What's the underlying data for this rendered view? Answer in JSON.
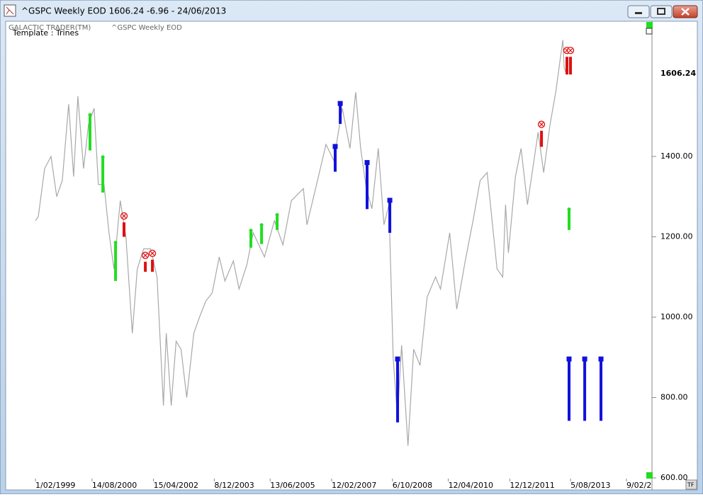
{
  "window": {
    "title": "^GSPC Weekly EOD  1606.24  -6.96 - 24/06/2013"
  },
  "header": {
    "app": "GALACTIC TRADER(TM)",
    "template": "Template : Trines"
  },
  "chart_data": {
    "type": "line",
    "subtitle": "^GSPC Weekly EOD",
    "x": [
      "1999-02-01",
      "1999-03-01",
      "1999-05-03",
      "1999-07-05",
      "1999-08-30",
      "1999-10-25",
      "1999-12-27",
      "2000-02-14",
      "2000-03-27",
      "2000-05-22",
      "2000-07-10",
      "2000-09-04",
      "2000-10-16",
      "2000-12-11",
      "2001-01-29",
      "2001-03-19",
      "2001-05-21",
      "2001-07-16",
      "2001-09-17",
      "2001-11-05",
      "2002-01-07",
      "2002-03-18",
      "2002-05-20",
      "2002-07-22",
      "2002-08-19",
      "2002-10-07",
      "2002-11-25",
      "2003-01-13",
      "2003-03-10",
      "2003-05-19",
      "2003-07-14",
      "2003-09-15",
      "2003-11-17",
      "2004-01-26",
      "2004-03-22",
      "2004-06-14",
      "2004-08-09",
      "2004-10-25",
      "2004-12-27",
      "2005-04-18",
      "2005-07-25",
      "2005-10-17",
      "2006-01-09",
      "2006-05-08",
      "2006-06-12",
      "2006-09-25",
      "2006-12-18",
      "2007-03-05",
      "2007-05-28",
      "2007-08-13",
      "2007-10-08",
      "2007-11-26",
      "2008-01-21",
      "2008-03-17",
      "2008-05-19",
      "2008-07-14",
      "2008-09-01",
      "2008-10-13",
      "2008-11-24",
      "2009-01-05",
      "2009-03-09",
      "2009-05-04",
      "2009-07-06",
      "2009-09-14",
      "2009-12-07",
      "2010-01-25",
      "2010-04-26",
      "2010-07-05",
      "2010-09-27",
      "2010-12-13",
      "2011-02-21",
      "2011-05-02",
      "2011-08-08",
      "2011-10-03",
      "2011-10-31",
      "2011-11-28",
      "2012-02-06",
      "2012-04-02",
      "2012-06-04",
      "2012-09-17",
      "2012-11-12",
      "2013-01-14",
      "2013-03-11",
      "2013-05-20",
      "2013-06-03",
      "2013-06-24"
    ],
    "series": [
      {
        "color": "#a8a8a8",
        "values": [
          1240,
          1250,
          1370,
          1400,
          1300,
          1340,
          1530,
          1350,
          1550,
          1370,
          1480,
          1520,
          1330,
          1330,
          1210,
          1120,
          1290,
          1200,
          960,
          1120,
          1170,
          1170,
          1100,
          780,
          960,
          780,
          940,
          920,
          800,
          960,
          1000,
          1040,
          1060,
          1150,
          1090,
          1140,
          1070,
          1130,
          1210,
          1150,
          1240,
          1180,
          1290,
          1320,
          1230,
          1340,
          1430,
          1390,
          1520,
          1420,
          1560,
          1420,
          1320,
          1270,
          1420,
          1230,
          1280,
          900,
          750,
          930,
          680,
          920,
          880,
          1050,
          1100,
          1070,
          1210,
          1020,
          1140,
          1240,
          1340,
          1360,
          1120,
          1100,
          1280,
          1160,
          1350,
          1420,
          1280,
          1460,
          1360,
          1480,
          1560,
          1690,
          1620,
          1606.24
        ]
      }
    ],
    "last_value": 1606.24,
    "signals": [
      {
        "color": "#22dd22",
        "marker": "dot",
        "x": "2000-07-25",
        "top": 1500,
        "bottom": 1415
      },
      {
        "color": "#22dd22",
        "marker": "dot",
        "x": "2000-11-29",
        "top": 1395,
        "bottom": 1310
      },
      {
        "color": "#22dd22",
        "marker": "dot",
        "x": "2001-04-04",
        "top": 1182,
        "bottom": 1090
      },
      {
        "color": "#22dd22",
        "marker": "dot",
        "x": "2004-12-04",
        "top": 1212,
        "bottom": 1173
      },
      {
        "color": "#22dd22",
        "marker": "dot",
        "x": "2005-03-20",
        "top": 1226,
        "bottom": 1182
      },
      {
        "color": "#22dd22",
        "marker": "dot",
        "x": "2005-08-21",
        "top": 1251,
        "bottom": 1217
      },
      {
        "color": "#22dd22",
        "marker": "dot",
        "x": "2013-07-21",
        "top": 1265,
        "bottom": 1217
      },
      {
        "color": "#dd1111",
        "marker": "cross",
        "x": "2001-06-27",
        "top": 1236,
        "bottom": 1200
      },
      {
        "color": "#dd1111",
        "marker": "cross",
        "x": "2002-01-24",
        "top": 1138,
        "bottom": 1113
      },
      {
        "color": "#dd1111",
        "marker": "cross",
        "x": "2002-04-04",
        "top": 1143,
        "bottom": 1113
      },
      {
        "color": "#dd1111",
        "marker": "cross",
        "x": "2012-10-21",
        "top": 1464,
        "bottom": 1424
      },
      {
        "color": "#dd1111",
        "marker": "cross",
        "x": "2013-06-30",
        "top": 1648,
        "bottom": 1604
      },
      {
        "color": "#dd1111",
        "marker": "cross",
        "x": "2013-08-04",
        "top": 1648,
        "bottom": 1604
      },
      {
        "color": "#1111dd",
        "marker": "square",
        "x": "2007-03-19",
        "top": 1424,
        "bottom": 1362
      },
      {
        "color": "#1111dd",
        "marker": "square",
        "x": "2007-05-08",
        "top": 1531,
        "bottom": 1481
      },
      {
        "color": "#1111dd",
        "marker": "square",
        "x": "2008-01-29",
        "top": 1384,
        "bottom": 1269
      },
      {
        "color": "#1111dd",
        "marker": "square",
        "x": "2008-09-10",
        "top": 1290,
        "bottom": 1210
      },
      {
        "color": "#1111dd",
        "marker": "square",
        "x": "2008-11-26",
        "top": 895,
        "bottom": 738
      },
      {
        "color": "#1111dd",
        "marker": "square",
        "x": "2013-07-21",
        "top": 895,
        "bottom": 742
      },
      {
        "color": "#1111dd",
        "marker": "square",
        "x": "2013-12-23",
        "top": 895,
        "bottom": 742
      },
      {
        "color": "#1111dd",
        "marker": "square",
        "x": "2014-06-02",
        "top": 895,
        "bottom": 742
      }
    ],
    "xlim": [
      "1998-04-26",
      "2015-10-06"
    ],
    "xticks": [
      {
        "value": "1999-02-01",
        "label": "1/02/1999"
      },
      {
        "value": "2000-08-14",
        "label": "14/08/2000"
      },
      {
        "value": "2002-04-15",
        "label": "15/04/2002"
      },
      {
        "value": "2003-12-08",
        "label": "8/12/2003"
      },
      {
        "value": "2005-06-13",
        "label": "13/06/2005"
      },
      {
        "value": "2007-02-12",
        "label": "12/02/2007"
      },
      {
        "value": "2008-10-06",
        "label": "6/10/2008"
      },
      {
        "value": "2010-04-12",
        "label": "12/04/2010"
      },
      {
        "value": "2011-12-12",
        "label": "12/12/2011"
      },
      {
        "value": "2013-08-05",
        "label": "5/08/2013"
      },
      {
        "value": "2015-02-09",
        "label": "9/02/2"
      }
    ],
    "ylim": [
      600,
      1733
    ],
    "yticks": [
      {
        "value": 600,
        "label": "600.00"
      },
      {
        "value": 800,
        "label": "800.00"
      },
      {
        "value": 1000,
        "label": "1000.00"
      },
      {
        "value": 1200,
        "label": "1200.00"
      },
      {
        "value": 1400,
        "label": "1400.00"
      }
    ]
  }
}
